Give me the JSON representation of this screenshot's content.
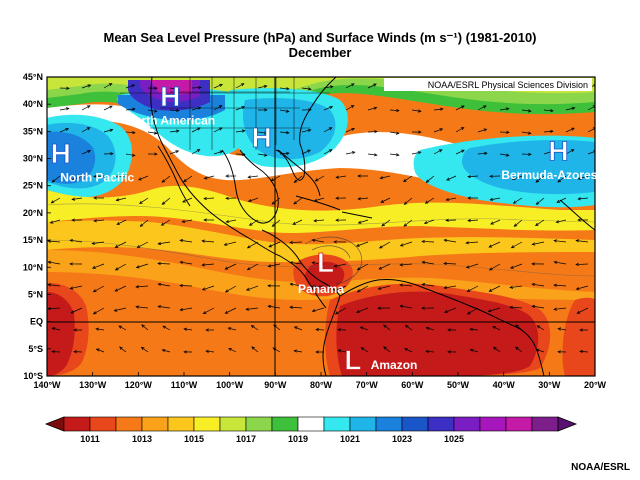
{
  "title": "Mean Sea Level Pressure (hPa) and Surface Winds (m s⁻¹) (1981-2010)",
  "subtitle": "December",
  "source_label": "NOAA/ESRL Physical Sciences Division",
  "credit": "NOAA/ESRL",
  "axes": {
    "lon_labels": [
      "140°W",
      "130°W",
      "120°W",
      "110°W",
      "100°W",
      "90°W",
      "80°W",
      "70°W",
      "60°W",
      "50°W",
      "40°W",
      "30°W",
      "20°W"
    ],
    "lat_labels": [
      "45°N",
      "40°N",
      "35°N",
      "30°N",
      "25°N",
      "20°N",
      "15°N",
      "10°N",
      "5°N",
      "EQ",
      "5°S",
      "10°S"
    ],
    "lon_range": [
      -140,
      -20
    ],
    "lat_range": [
      -10,
      45
    ]
  },
  "colorbar": {
    "labels": [
      "1011",
      "1013",
      "1015",
      "1017",
      "1019",
      "1021",
      "1023",
      "1025"
    ],
    "colors": [
      "#c41a1a",
      "#e8461b",
      "#f57a17",
      "#f9a21a",
      "#fbc71c",
      "#f8ee26",
      "#c8e53a",
      "#8bd64a",
      "#3fc03a",
      "#ffffff",
      "#35e7ee",
      "#1fb5e8",
      "#1a82dd",
      "#1a55c9",
      "#3d2fc4",
      "#7a1ec4",
      "#a516bd",
      "#c51aa8",
      "#7e1e8c"
    ]
  },
  "pressure_systems": [
    {
      "letter": "H",
      "label": "North American",
      "lon": -113,
      "lat": 41.5,
      "label_lon": -113,
      "label_lat": 37
    },
    {
      "letter": "H",
      "label": "",
      "lon": -93,
      "lat": 34,
      "label_lon": -93,
      "label_lat": 34
    },
    {
      "letter": "H",
      "label": "North Pacific",
      "lon": -137,
      "lat": 31,
      "label_lon": -129,
      "label_lat": 26.5
    },
    {
      "letter": "H",
      "label": "Bermuda-Azores",
      "lon": -28,
      "lat": 31.5,
      "label_lon": -30,
      "label_lat": 27
    },
    {
      "letter": "L",
      "label": "Panama",
      "lon": -79,
      "lat": 11,
      "label_lon": -80,
      "label_lat": 6
    },
    {
      "letter": "L",
      "label": "Amazon",
      "lon": -73,
      "lat": -7,
      "label_lon": -64,
      "label_lat": -8
    }
  ],
  "legend_colors": {
    "high_marker": "#ffffff",
    "low_marker": "#ffffff",
    "frame": "#000000",
    "coast": "#000000"
  }
}
